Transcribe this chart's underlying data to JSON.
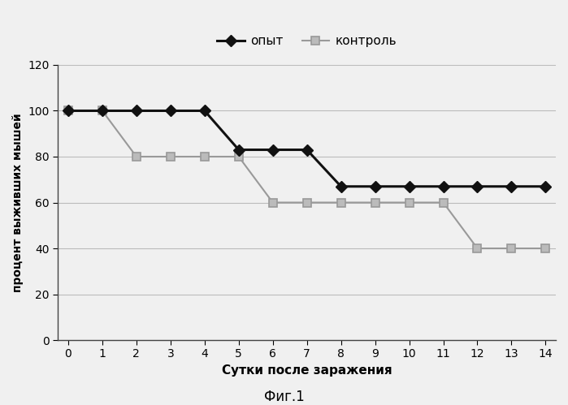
{
  "x": [
    0,
    1,
    2,
    3,
    4,
    5,
    6,
    7,
    8,
    9,
    10,
    11,
    12,
    13,
    14
  ],
  "opyt": [
    100,
    100,
    100,
    100,
    100,
    83,
    83,
    83,
    67,
    67,
    67,
    67,
    67,
    67,
    67
  ],
  "kontrol": [
    100,
    100,
    80,
    80,
    80,
    80,
    60,
    60,
    60,
    60,
    60,
    60,
    40,
    40,
    40
  ],
  "opyt_label": "опыт",
  "kontrol_label": "контроль",
  "xlabel": "Сутки после заражения",
  "ylabel": "процент выживших мышей",
  "caption": "Фиг.1",
  "ylim": [
    0,
    120
  ],
  "xlim": [
    -0.3,
    14.3
  ],
  "yticks": [
    0,
    20,
    40,
    60,
    80,
    100,
    120
  ],
  "xticks": [
    0,
    1,
    2,
    3,
    4,
    5,
    6,
    7,
    8,
    9,
    10,
    11,
    12,
    13,
    14
  ],
  "opyt_color": "#111111",
  "kontrol_color": "#999999",
  "bg_color": "#f0f0f0",
  "plot_bg_color": "#f0f0f0",
  "grid_color": "#bbbbbb",
  "linewidth_opyt": 2.2,
  "linewidth_kontrol": 1.5,
  "marker_opyt": "D",
  "marker_kontrol": "s",
  "markersize_opyt": 7,
  "markersize_kontrol": 7,
  "xlabel_fontsize": 11,
  "ylabel_fontsize": 10,
  "tick_fontsize": 10,
  "legend_fontsize": 11,
  "caption_fontsize": 12
}
